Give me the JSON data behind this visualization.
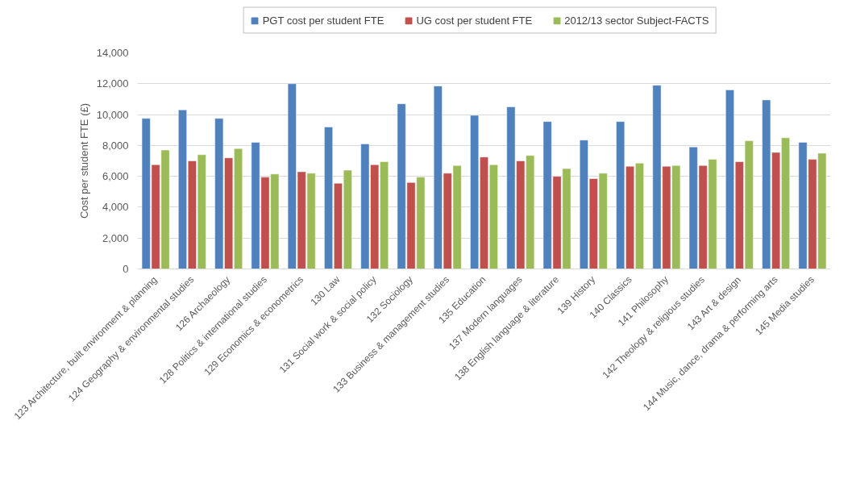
{
  "chart_data": {
    "type": "bar",
    "ylabel": "Cost per student FTE (£)",
    "categories": [
      "123 Architecture, built environment & planning",
      "124 Geography & environmental studies",
      "126 Archaeology",
      "128 Politics & international studies",
      "129 Economics & econometrics",
      "130 Law",
      "131 Social work & social policy",
      "132 Sociology",
      "133 Business & management studies",
      "135 Education",
      "137 Modern languages",
      "138 English language & literature",
      "139 History",
      "140 Classics",
      "141 Philosophy",
      "142 Theology & religious studies",
      "143 Art & design",
      "144 Music, dance, drama & performing arts",
      "145 Media studies"
    ],
    "series": [
      {
        "name": "PGT cost per student FTE",
        "color": "#4f81bd",
        "values": [
          9750,
          10300,
          9750,
          8200,
          12000,
          9200,
          8100,
          10700,
          11850,
          9950,
          10500,
          9550,
          8350,
          9550,
          11900,
          7900,
          11600,
          10950,
          8200
        ]
      },
      {
        "name": "UG cost per student FTE",
        "color": "#c0504d",
        "values": [
          6750,
          7000,
          7200,
          5950,
          6300,
          5550,
          6750,
          5600,
          6200,
          7250,
          7000,
          6000,
          5850,
          6650,
          6650,
          6700,
          6950,
          7550,
          7100
        ]
      },
      {
        "name": "2012/13 sector Subject-FACTS",
        "color": "#9bbb59",
        "values": [
          7700,
          7400,
          7800,
          6150,
          6200,
          6400,
          6950,
          5950,
          6700,
          6750,
          7350,
          6500,
          6200,
          6850,
          6700,
          7100,
          8300,
          8500,
          7500
        ]
      }
    ],
    "ylim": [
      0,
      14000
    ],
    "yticks": [
      {
        "value": 0,
        "label": "0"
      },
      {
        "value": 2000,
        "label": "2,000"
      },
      {
        "value": 4000,
        "label": "4,000"
      },
      {
        "value": 6000,
        "label": "6,000"
      },
      {
        "value": 8000,
        "label": "8,000"
      },
      {
        "value": 10000,
        "label": "10,000"
      },
      {
        "value": 12000,
        "label": "12,000"
      },
      {
        "value": 14000,
        "label": "14,000"
      }
    ],
    "grid": "y",
    "legend": "top"
  }
}
